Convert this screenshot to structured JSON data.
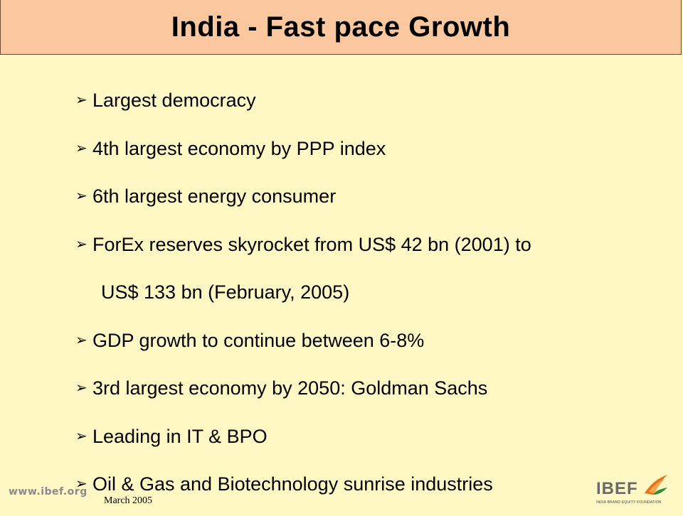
{
  "slide": {
    "title": "India - Fast pace Growth",
    "bullets": [
      {
        "text": "Largest democracy"
      },
      {
        "text": "4th largest economy by PPP index"
      },
      {
        "text": "6th largest energy consumer"
      },
      {
        "text": "ForEx reserves skyrocket from US$ 42 bn (2001) to",
        "continuation": "US$ 133 bn (February, 2005)"
      },
      {
        "text": "GDP growth to continue between 6-8%"
      },
      {
        "text": "3rd largest economy by 2050: Goldman Sachs"
      },
      {
        "text": "Leading in IT & BPO"
      },
      {
        "text": "Oil & Gas and Biotechnology sunrise industries"
      }
    ],
    "bullet_marker": "➢"
  },
  "footer": {
    "url": "www.ibef.org",
    "date": "March 2005",
    "logo_text": "IBEF",
    "logo_subtext": "INDIA BRAND EQUITY FOUNDATION"
  },
  "colors": {
    "background": "#fff8c4",
    "title_bar": "#fbc79e"
  }
}
